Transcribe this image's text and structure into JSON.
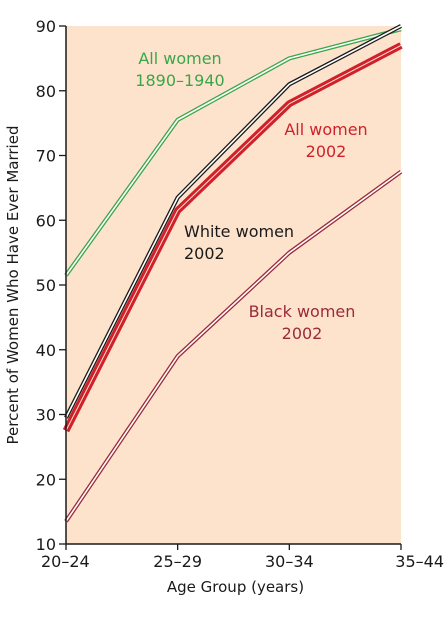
{
  "chart_data": {
    "type": "line",
    "x": [
      "20–24",
      "25–29",
      "30–34",
      "35–44"
    ],
    "xlabel": "Age Group (years)",
    "ylabel": "Percent of Women Who Have Ever Married",
    "ylim": [
      10,
      90
    ],
    "yticks": [
      10,
      20,
      30,
      40,
      50,
      60,
      70,
      80,
      90
    ],
    "grid": false,
    "plot_background": "#fde3cc",
    "series": [
      {
        "name": "All women 1890–1940",
        "label_lines": [
          "All women",
          "1890–1940"
        ],
        "color": "#3aa64a",
        "style": "double",
        "values": [
          51.5,
          75.5,
          85,
          89.5
        ]
      },
      {
        "name": "White women 2002",
        "label_lines": [
          "White women",
          "2002"
        ],
        "color": "#1a1a1a",
        "style": "double",
        "values": [
          29.5,
          63.5,
          81,
          90
        ]
      },
      {
        "name": "All women 2002",
        "label_lines": [
          "All women",
          "2002"
        ],
        "color": "#d0202b",
        "style": "thick",
        "values": [
          27.5,
          61.5,
          78,
          87
        ]
      },
      {
        "name": "Black women 2002",
        "label_lines": [
          "Black women",
          "2002"
        ],
        "color": "#9b2a3a",
        "style": "double",
        "values": [
          13.5,
          39,
          55,
          67.5
        ]
      }
    ]
  }
}
